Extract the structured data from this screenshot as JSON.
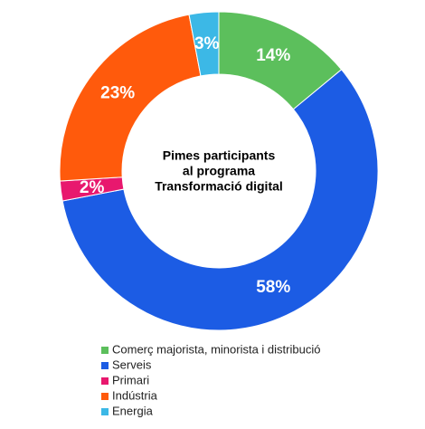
{
  "chart_data": {
    "type": "donut",
    "title": [
      "Pimes participants",
      "al programa",
      "Transformació digital"
    ],
    "categories": [
      "Comerç majorista, minorista i distribució",
      "Serveis",
      "Primari",
      "Indústria",
      "Energia"
    ],
    "values": [
      14,
      58,
      2,
      23,
      3
    ],
    "value_labels": [
      "14%",
      "58%",
      "2%",
      "23%",
      "3%"
    ],
    "colors": [
      "#5cbf5c",
      "#1c5ce4",
      "#e8186e",
      "#ff5a0c",
      "#3cb8e6"
    ],
    "legend": "bottom"
  }
}
